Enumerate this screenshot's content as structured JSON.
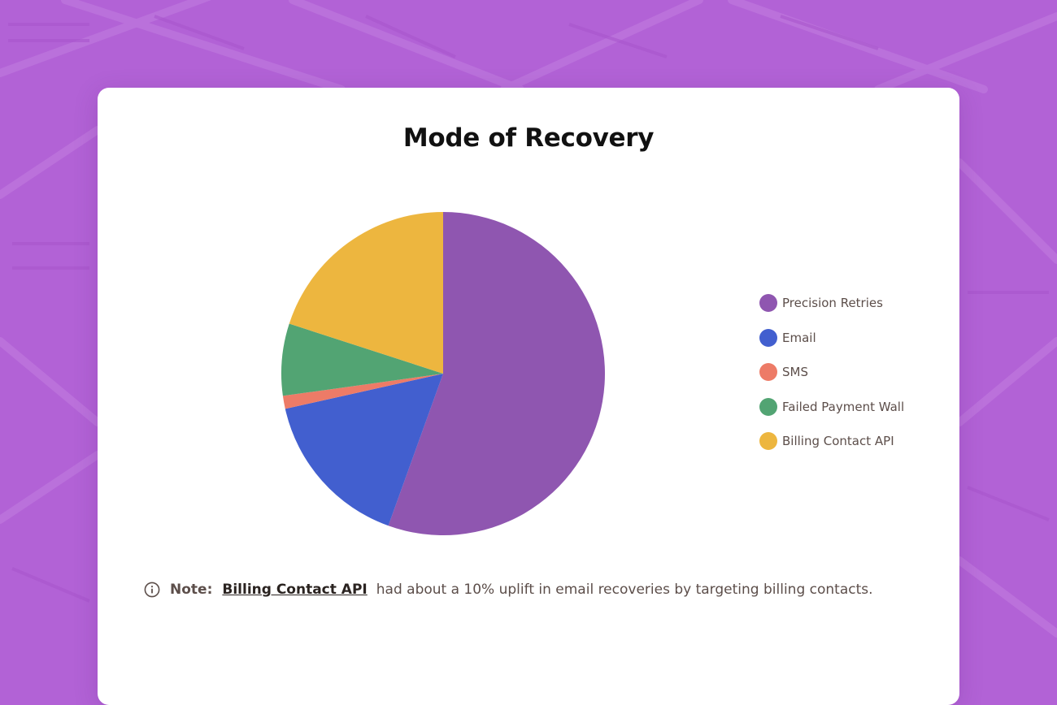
{
  "chart_data": {
    "type": "pie",
    "title": "Mode of Recovery",
    "series": [
      {
        "name": "Precision Retries",
        "value": 55.5,
        "color": "#8f56b0"
      },
      {
        "name": "Email",
        "value": 16.0,
        "color": "#425fcf"
      },
      {
        "name": "SMS",
        "value": 1.3,
        "color": "#ed7b67"
      },
      {
        "name": "Failed Payment Wall",
        "value": 7.2,
        "color": "#52a473"
      },
      {
        "name": "Billing Contact API",
        "value": 20.0,
        "color": "#edb63f"
      }
    ],
    "legend_position": "right"
  },
  "note": {
    "icon": "info-icon",
    "prefix": "Note:",
    "link_text": "Billing Contact API",
    "text": "had about a 10% uplift in email recoveries by targeting billing contacts."
  },
  "colors": {
    "background": "#b262d6",
    "card": "#ffffff"
  }
}
